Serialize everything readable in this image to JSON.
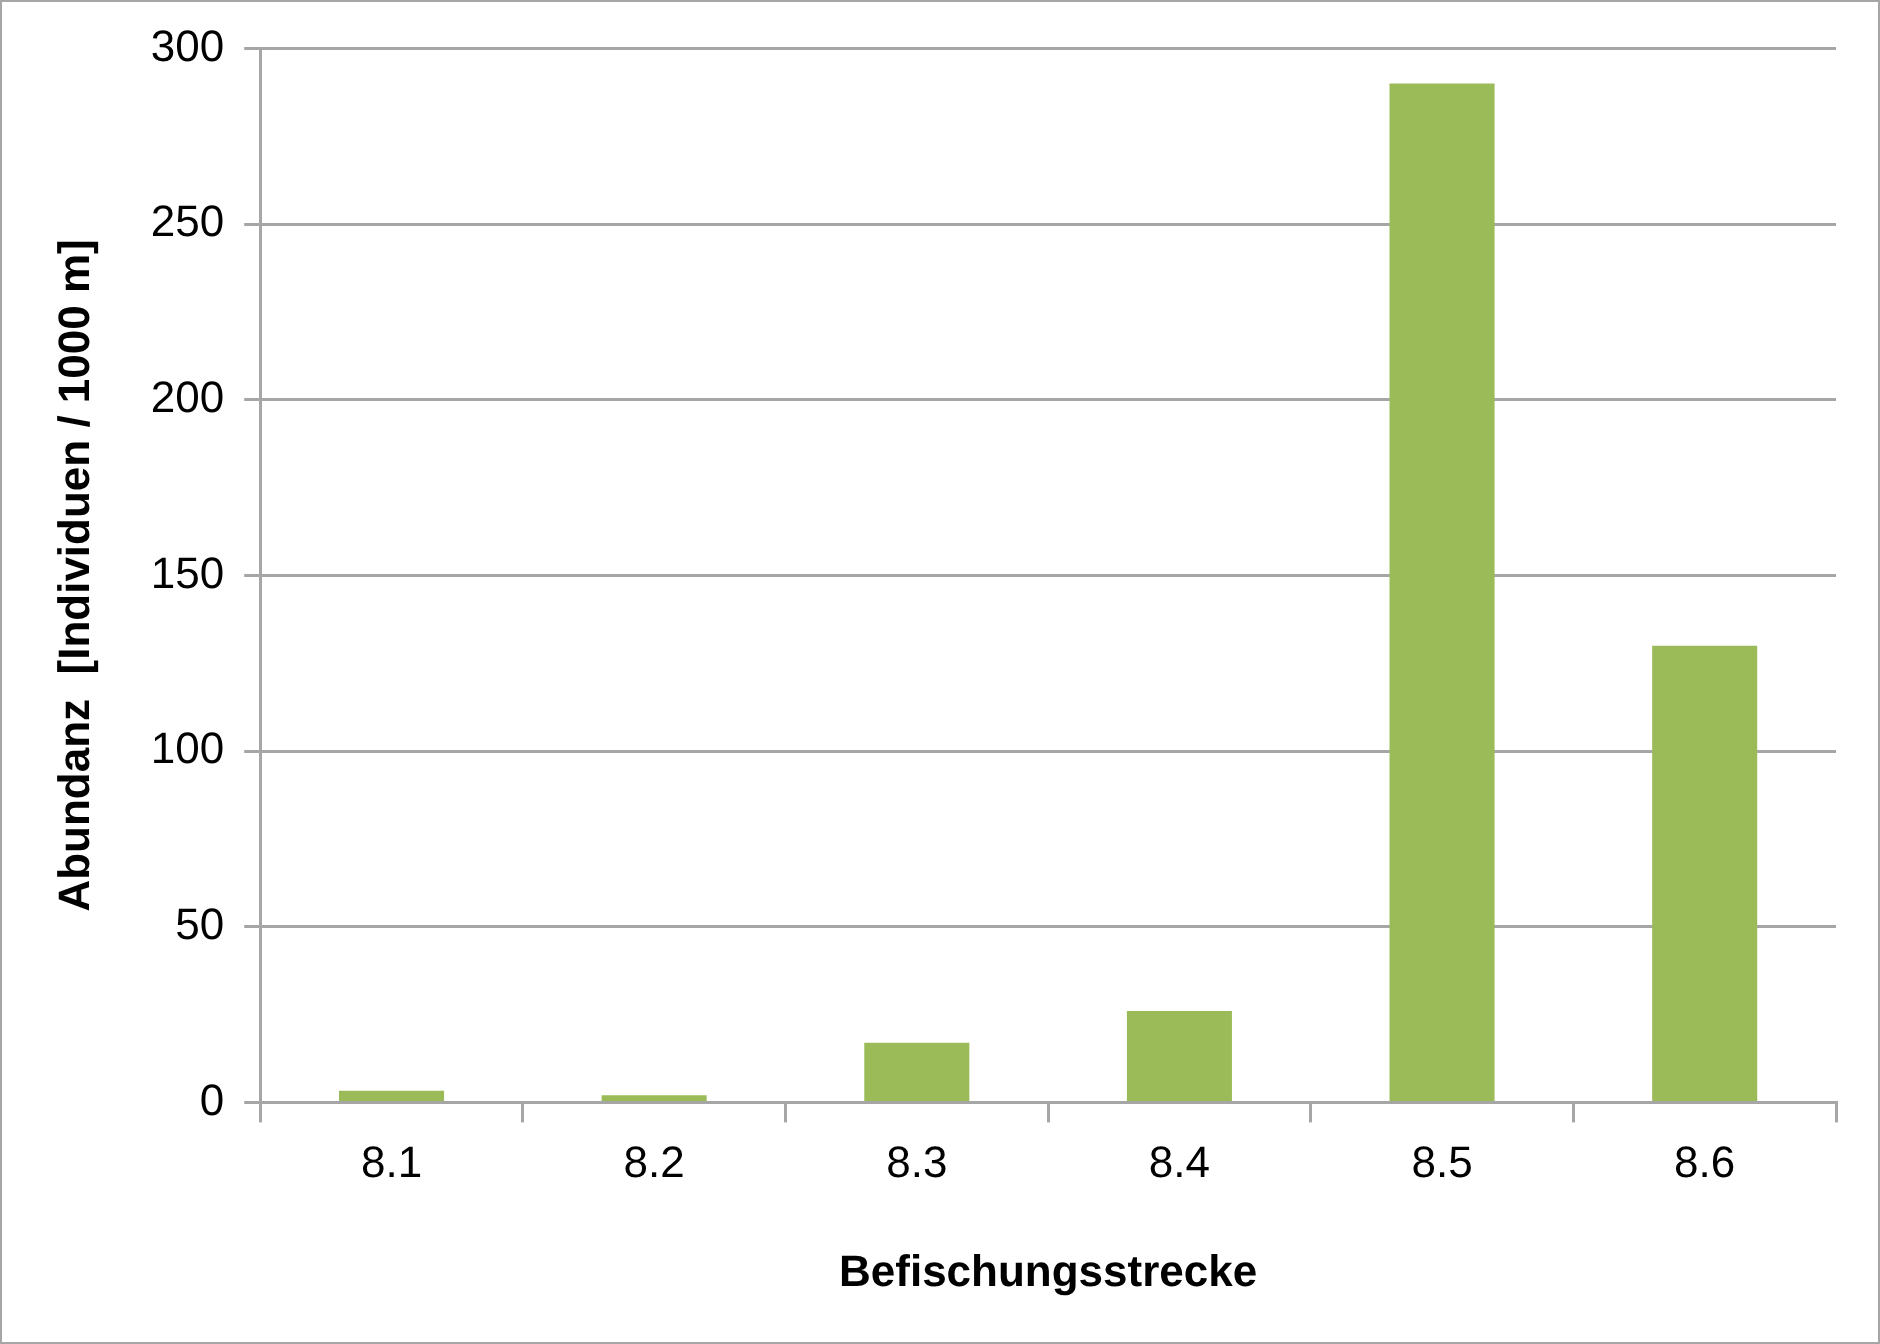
{
  "chart_data": {
    "type": "bar",
    "xlabel": "Befischungsstrecke",
    "ylabel": "Abundanz  [Individuen / 1000 m]",
    "categories": [
      "8.1",
      "8.2",
      "8.3",
      "8.4",
      "8.5",
      "8.6"
    ],
    "values": [
      3.3,
      2,
      17,
      26,
      290,
      130
    ],
    "color": "#9bbb59",
    "ylim": [
      0,
      300
    ],
    "yticks": [
      0,
      50,
      100,
      150,
      200,
      250,
      300
    ],
    "grid": "y",
    "legend": false
  }
}
